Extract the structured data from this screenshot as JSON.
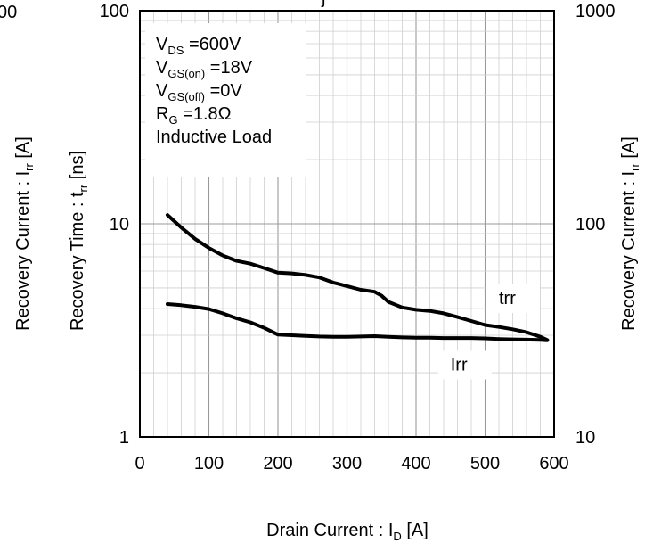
{
  "chart_data": {
    "type": "line",
    "x_axis": {
      "label_main": "Drain Current : I",
      "label_sub": "D",
      "label_unit": "  [A]",
      "range": [
        0,
        600
      ],
      "ticks": [
        "0",
        "100",
        "200",
        "300",
        "400",
        "500",
        "600"
      ],
      "tick_values": [
        0,
        100,
        200,
        300,
        400,
        500,
        600
      ]
    },
    "y_left_axis": {
      "label_main": "Recovery Time : t",
      "label_sub": "rr",
      "label_unit": "  [ns]",
      "scale": "log",
      "range": [
        1,
        100
      ],
      "ticks": [
        "1",
        "10",
        "100"
      ],
      "tick_values": [
        1,
        10,
        100
      ]
    },
    "y_left_outer_label": {
      "label_main": "Recovery Current : I",
      "label_sub": "rr",
      "label_unit": "  [A]"
    },
    "left_cut_text": "00",
    "y_right_axis": {
      "label_main": "Recovery Current : I",
      "label_sub": "rr",
      "label_unit": "  [A]",
      "scale": "log",
      "range": [
        10,
        1000
      ],
      "ticks": [
        "10",
        "100",
        "1000"
      ],
      "tick_values": [
        10,
        100,
        1000
      ]
    },
    "grid": true,
    "conditions": [
      {
        "main": "V",
        "sub": "DS",
        "rest": " =600V"
      },
      {
        "main": "V",
        "sub": "GS(on)",
        "rest": " =18V"
      },
      {
        "main": "V",
        "sub": "GS(off)",
        "rest": " =0V"
      },
      {
        "main": "R",
        "sub": "G",
        "rest": " =1.8Ω"
      },
      {
        "main": "Inductive Load",
        "sub": "",
        "rest": ""
      }
    ],
    "series": [
      {
        "name": "trr",
        "axis": "left",
        "x": [
          40,
          60,
          80,
          100,
          120,
          140,
          160,
          180,
          200,
          220,
          240,
          260,
          280,
          300,
          320,
          340,
          350,
          360,
          380,
          400,
          420,
          440,
          460,
          480,
          500,
          520,
          540,
          560,
          580,
          590
        ],
        "y": [
          11.0,
          9.6,
          8.5,
          7.7,
          7.1,
          6.7,
          6.5,
          6.2,
          5.9,
          5.85,
          5.75,
          5.6,
          5.3,
          5.1,
          4.9,
          4.8,
          4.6,
          4.3,
          4.05,
          3.95,
          3.9,
          3.8,
          3.65,
          3.5,
          3.35,
          3.28,
          3.2,
          3.1,
          2.95,
          2.85
        ]
      },
      {
        "name": "Irr",
        "axis": "right",
        "x": [
          40,
          60,
          80,
          100,
          120,
          140,
          160,
          180,
          200,
          220,
          240,
          260,
          280,
          300,
          320,
          340,
          360,
          380,
          400,
          420,
          440,
          460,
          480,
          500,
          520,
          540,
          560,
          580,
          590
        ],
        "y": [
          42,
          41.5,
          40.8,
          39.8,
          38,
          36,
          34.5,
          32.5,
          30.2,
          30,
          29.8,
          29.6,
          29.5,
          29.5,
          29.6,
          29.7,
          29.5,
          29.3,
          29.2,
          29.2,
          29.1,
          29.1,
          29.1,
          29.0,
          28.8,
          28.7,
          28.6,
          28.5,
          28.4
        ]
      }
    ],
    "series_labels": [
      {
        "text": "trr",
        "x": 520,
        "y": 4.2
      },
      {
        "text": "Irr",
        "x": 450,
        "y": 2.05
      }
    ],
    "top_cut_text": "j"
  }
}
